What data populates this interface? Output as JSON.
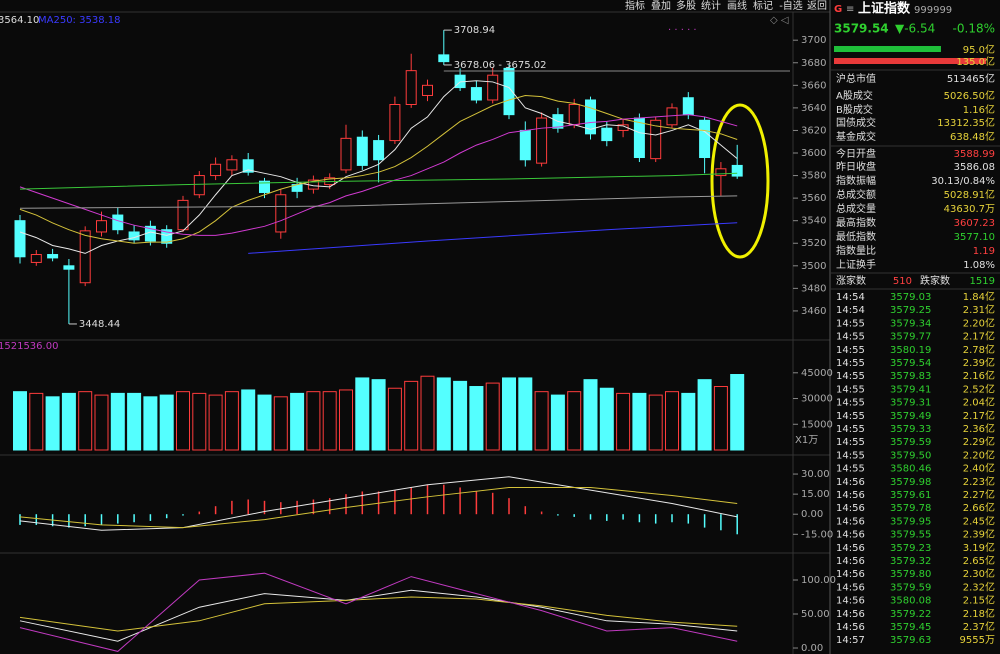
{
  "toolbar": [
    "指标",
    "叠加",
    "多股",
    "统计",
    "画线",
    "标记",
    "-自选",
    "返回"
  ],
  "chart_data": [
    {
      "type": "candlestick",
      "header": [
        "3564.10",
        "MA250: 3538.18"
      ],
      "up_color": "#ff3c3c",
      "down_color": "#54ffff",
      "ylim": [
        3436,
        3725
      ],
      "yticks": [
        3700,
        3680,
        3660,
        3640,
        3620,
        3600,
        3580,
        3560,
        3540,
        3520,
        3500,
        3480,
        3460
      ],
      "ohlc": [
        [
          3540,
          3545,
          3502,
          3508
        ],
        [
          3503,
          3514,
          3500,
          3510
        ],
        [
          3510,
          3515,
          3504,
          3507
        ],
        [
          3500,
          3506,
          3448.44,
          3497
        ],
        [
          3485,
          3535,
          3482,
          3531
        ],
        [
          3530,
          3548,
          3526,
          3540
        ],
        [
          3545,
          3552,
          3528,
          3532
        ],
        [
          3530,
          3536,
          3520,
          3523
        ],
        [
          3535,
          3540,
          3518,
          3522
        ],
        [
          3532,
          3536,
          3516,
          3520
        ],
        [
          3532,
          3562,
          3530,
          3558
        ],
        [
          3563,
          3584,
          3560,
          3580
        ],
        [
          3580,
          3596,
          3576,
          3590
        ],
        [
          3585,
          3598,
          3580,
          3594
        ],
        [
          3594,
          3600,
          3580,
          3583
        ],
        [
          3575,
          3578,
          3560,
          3565
        ],
        [
          3530,
          3568,
          3524,
          3563
        ],
        [
          3572,
          3578,
          3560,
          3566
        ],
        [
          3568,
          3580,
          3564,
          3576
        ],
        [
          3572,
          3582,
          3568,
          3578
        ],
        [
          3585,
          3625,
          3582,
          3613
        ],
        [
          3614,
          3620,
          3585,
          3589
        ],
        [
          3611,
          3616,
          3574,
          3594
        ],
        [
          3611,
          3650,
          3608,
          3643
        ],
        [
          3643,
          3688,
          3640,
          3673
        ],
        [
          3651,
          3665,
          3646,
          3660
        ],
        [
          3687,
          3708.94,
          3678,
          3681
        ],
        [
          3669,
          3675,
          3655,
          3658
        ],
        [
          3658,
          3664,
          3644,
          3647
        ],
        [
          3647,
          3676,
          3644,
          3669
        ],
        [
          3675.02,
          3678.06,
          3630,
          3634
        ],
        [
          3620,
          3628,
          3588,
          3594
        ],
        [
          3591,
          3636,
          3588,
          3631
        ],
        [
          3634,
          3640,
          3618,
          3622
        ],
        [
          3625,
          3648,
          3622,
          3643
        ],
        [
          3647,
          3650,
          3612,
          3617
        ],
        [
          3622,
          3628,
          3606,
          3611
        ],
        [
          3620,
          3630,
          3614,
          3625
        ],
        [
          3631,
          3635,
          3592,
          3596
        ],
        [
          3595,
          3632,
          3592,
          3629
        ],
        [
          3625,
          3644,
          3622,
          3640
        ],
        [
          3649,
          3654,
          3630,
          3634
        ],
        [
          3629,
          3632,
          3582,
          3596
        ],
        [
          3580,
          3592,
          3562,
          3586
        ],
        [
          3588.99,
          3607.23,
          3577.1,
          3579.54
        ]
      ],
      "lines": [
        {
          "color": "#e8e8e8",
          "values": [
            3530,
            3525,
            3518,
            3515,
            3511,
            3518,
            3522,
            3525,
            3530,
            3527,
            3531,
            3545,
            3563,
            3580,
            3585,
            3582,
            3579,
            3574,
            3571,
            3570,
            3579,
            3584,
            3590,
            3603,
            3622,
            3632,
            3650,
            3663,
            3664,
            3663,
            3658,
            3640,
            3635,
            3628,
            3625,
            3621,
            3625,
            3624,
            3618,
            3616,
            3620,
            3625,
            3619,
            3607,
            3595
          ]
        },
        {
          "color": "#d4c23a",
          "values": [
            3550,
            3545,
            3538,
            3532,
            3527,
            3524,
            3522,
            3520,
            3521,
            3521,
            3524,
            3530,
            3540,
            3552,
            3558,
            3563,
            3568,
            3572,
            3575,
            3577,
            3578,
            3580,
            3583,
            3588,
            3596,
            3606,
            3617,
            3628,
            3635,
            3642,
            3647,
            3651,
            3650,
            3646,
            3644,
            3640,
            3635,
            3630,
            3627,
            3624,
            3622,
            3621,
            3620,
            3617,
            3612
          ]
        },
        {
          "color": "#d03ad0",
          "values": [
            3570,
            3565,
            3560,
            3555,
            3550,
            3545,
            3540,
            3536,
            3533,
            3530,
            3528,
            3527,
            3527,
            3529,
            3532,
            3535,
            3540,
            3546,
            3552,
            3556,
            3562,
            3566,
            3571,
            3576,
            3580,
            3586,
            3592,
            3600,
            3607,
            3612,
            3618,
            3620,
            3622,
            3623,
            3625,
            3627,
            3628,
            3630,
            3631,
            3632,
            3633,
            3634,
            3632,
            3628,
            3624
          ]
        },
        {
          "color": "#3ac83a",
          "x": [
            0,
            10,
            20,
            30,
            40,
            44
          ],
          "values": [
            3568,
            3572,
            3575,
            3577,
            3580,
            3582
          ]
        },
        {
          "color": "#9a9a9a",
          "x": [
            0,
            10,
            20,
            30,
            40,
            44
          ],
          "values": [
            3551,
            3552,
            3553,
            3557,
            3561,
            3562
          ]
        },
        {
          "color": "#3a3aff",
          "x": [
            14,
            25,
            36,
            44
          ],
          "values": [
            3511,
            3522,
            3532,
            3538.18
          ]
        }
      ],
      "annotations": [
        {
          "label": "3708.94",
          "value": 3708.94,
          "x": 26
        },
        {
          "label": "3678.06 - 3675.02",
          "value": 3678.06,
          "x": 26
        },
        {
          "label": "3448.44",
          "value": 3448.44,
          "x": 3
        }
      ]
    },
    {
      "type": "volume",
      "header": "1521536.00",
      "unit": "X1万",
      "ylim": [
        0,
        61200
      ],
      "yticks": [
        45000,
        30000,
        15000
      ],
      "values": [
        34000,
        33000,
        31000,
        33000,
        34000,
        32000,
        33000,
        33000,
        31000,
        32000,
        34000,
        33000,
        32000,
        34000,
        35000,
        32000,
        31000,
        33000,
        34000,
        34000,
        35000,
        42000,
        41000,
        36000,
        40000,
        43000,
        42000,
        40000,
        37000,
        39000,
        42000,
        42000,
        34000,
        32000,
        34000,
        41000,
        36000,
        33000,
        33000,
        32000,
        34000,
        33000,
        41000,
        37000,
        44000
      ]
    },
    {
      "type": "macd",
      "ylim": [
        -23,
        40.5
      ],
      "yticks": [
        {
          "value": 30,
          "label": "30.00"
        },
        {
          "value": 15,
          "label": "15.00"
        },
        {
          "value": 0,
          "label": "0.00"
        },
        {
          "value": -15,
          "label": "-15.00"
        }
      ],
      "values": [
        -8,
        -8,
        -9,
        -10,
        -9,
        -8,
        -7,
        -6,
        -5,
        -3,
        -1,
        2,
        6,
        10,
        11,
        10,
        9,
        10,
        11,
        12,
        15,
        17,
        17,
        18,
        20,
        22,
        22,
        20,
        17,
        16,
        12,
        6,
        2,
        -1,
        -2,
        -4,
        -5,
        -4,
        -6,
        -7,
        -6,
        -7,
        -10,
        -12,
        -15
      ],
      "lines": [
        {
          "color": "#e8e8e8",
          "x": [
            0,
            5,
            10,
            15,
            20,
            25,
            30,
            35,
            40,
            44
          ],
          "values": [
            -5,
            -12,
            -10,
            2,
            12,
            22,
            28,
            18,
            8,
            -2
          ]
        },
        {
          "color": "#d4c23a",
          "x": [
            0,
            5,
            10,
            15,
            20,
            25,
            30,
            35,
            40,
            44
          ],
          "values": [
            -2,
            -8,
            -10,
            -4,
            5,
            13,
            20,
            20,
            14,
            8
          ]
        }
      ]
    },
    {
      "type": "kdj",
      "ylim": [
        -8.8,
        129.4
      ],
      "yticks": [
        {
          "value": 100,
          "label": "100.00"
        },
        {
          "value": 50,
          "label": "50.00"
        },
        {
          "value": 0,
          "label": "0.00"
        }
      ],
      "lines": [
        {
          "color": "#e8e8e8",
          "x": [
            0,
            6,
            11,
            15,
            20,
            24,
            28,
            32,
            36,
            40,
            44
          ],
          "values": [
            40,
            10,
            60,
            80,
            70,
            85,
            75,
            60,
            40,
            35,
            25
          ]
        },
        {
          "color": "#d4c23a",
          "x": [
            0,
            6,
            11,
            15,
            20,
            24,
            28,
            32,
            36,
            40,
            44
          ],
          "values": [
            45,
            25,
            40,
            65,
            70,
            75,
            72,
            62,
            48,
            38,
            32
          ]
        },
        {
          "color": "#c03ac0",
          "x": [
            0,
            6,
            11,
            15,
            20,
            24,
            28,
            32,
            36,
            40,
            44
          ],
          "values": [
            30,
            -5,
            100,
            110,
            65,
            105,
            80,
            55,
            25,
            30,
            10
          ]
        }
      ]
    }
  ],
  "quote": {
    "badge": "G",
    "menu": "≡",
    "name": "上证指数",
    "code": "999999",
    "price": "3579.54",
    "change": "▼-6.54",
    "pct": "-0.18%",
    "bars": [
      {
        "value": 95,
        "label": "95.0亿",
        "color": "#1fbf3a"
      },
      {
        "value": 135,
        "label": "135.0亿",
        "color": "#e83a3a"
      }
    ],
    "stats": [
      {
        "label": "沪总市值",
        "value": "513465亿",
        "color": "#e0e0e0"
      },
      {
        "label": "A股成交",
        "value": "5026.50亿",
        "color": "#e6d23a"
      },
      {
        "label": "B股成交",
        "value": "1.16亿",
        "color": "#e6d23a"
      },
      {
        "label": "国债成交",
        "value": "13312.35亿",
        "color": "#e6d23a"
      },
      {
        "label": "基金成交",
        "value": "638.48亿",
        "color": "#e6d23a"
      },
      {
        "label": "今日开盘",
        "value": "3588.99",
        "color": "#ff4040"
      },
      {
        "label": "昨日收盘",
        "value": "3586.08",
        "color": "#e0e0e0"
      },
      {
        "label": "指数振幅",
        "value": "30.13/0.84%",
        "color": "#e0e0e0"
      },
      {
        "label": "总成交额",
        "value": "5028.91亿",
        "color": "#e6d23a"
      },
      {
        "label": "总成交量",
        "value": "43630.7万",
        "color": "#e6d23a"
      },
      {
        "label": "最高指数",
        "value": "3607.23",
        "color": "#ff4040"
      },
      {
        "label": "最低指数",
        "value": "3577.10",
        "color": "#2fd02f"
      },
      {
        "label": "指数量比",
        "value": "1.19",
        "color": "#ff4040"
      },
      {
        "label": "上证换手",
        "value": "1.08%",
        "color": "#e0e0e0"
      }
    ],
    "breadth": {
      "up_label": "涨家数",
      "up": "510",
      "down_label": "跌家数",
      "down": "1519"
    },
    "ticks": [
      [
        "14:54",
        "3579.03",
        "1.84亿"
      ],
      [
        "14:54",
        "3579.25",
        "2.31亿"
      ],
      [
        "14:55",
        "3579.34",
        "2.20亿"
      ],
      [
        "14:55",
        "3579.77",
        "2.17亿"
      ],
      [
        "14:55",
        "3580.19",
        "2.78亿"
      ],
      [
        "14:55",
        "3579.54",
        "2.39亿"
      ],
      [
        "14:55",
        "3579.83",
        "2.16亿"
      ],
      [
        "14:55",
        "3579.41",
        "2.52亿"
      ],
      [
        "14:55",
        "3579.31",
        "2.04亿"
      ],
      [
        "14:55",
        "3579.49",
        "2.17亿"
      ],
      [
        "14:55",
        "3579.33",
        "2.36亿"
      ],
      [
        "14:55",
        "3579.59",
        "2.29亿"
      ],
      [
        "14:55",
        "3579.50",
        "2.20亿"
      ],
      [
        "14:55",
        "3580.46",
        "2.40亿"
      ],
      [
        "14:56",
        "3579.98",
        "2.23亿"
      ],
      [
        "14:56",
        "3579.61",
        "2.27亿"
      ],
      [
        "14:56",
        "3579.78",
        "2.66亿"
      ],
      [
        "14:56",
        "3579.95",
        "2.45亿"
      ],
      [
        "14:56",
        "3579.55",
        "2.39亿"
      ],
      [
        "14:56",
        "3579.23",
        "3.19亿"
      ],
      [
        "14:56",
        "3579.32",
        "2.65亿"
      ],
      [
        "14:56",
        "3579.80",
        "2.30亿"
      ],
      [
        "14:56",
        "3579.59",
        "2.32亿"
      ],
      [
        "14:56",
        "3580.08",
        "2.15亿"
      ],
      [
        "14:56",
        "3579.22",
        "2.18亿"
      ],
      [
        "14:56",
        "3579.45",
        "2.37亿"
      ],
      [
        "14:57",
        "3579.63",
        "9555万"
      ]
    ]
  }
}
